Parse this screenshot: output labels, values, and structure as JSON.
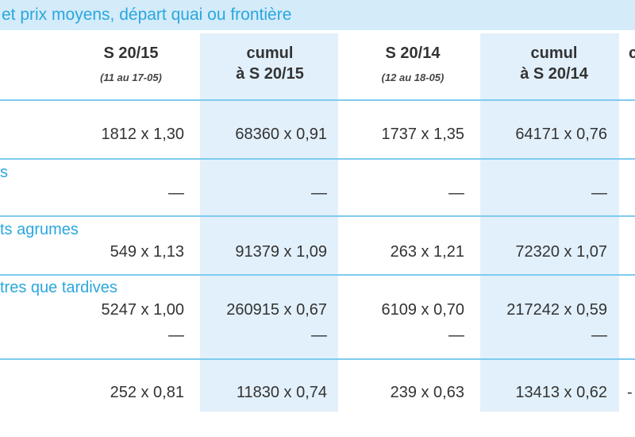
{
  "header": {
    "title": "et prix moyens, départ quai ou frontière"
  },
  "table": {
    "columns": [
      {
        "title": "S 20/15",
        "subtitle": "(11 au 17-05)"
      },
      {
        "title": "cumul\nà S 20/15"
      },
      {
        "title": "S 20/14",
        "subtitle": "(12 au 18-05)"
      },
      {
        "title": "cumul\nà S 20/14"
      },
      {
        "title": "c"
      }
    ],
    "rows": [
      {
        "lines": [
          [
            "1812 x 1,30",
            "68360 x 0,91",
            "1737 x 1,35",
            "64171 x 0,76"
          ]
        ]
      },
      {
        "label": "s",
        "lines": [
          [
            "—",
            "—",
            "—",
            "—"
          ]
        ]
      },
      {
        "label": "ts agrumes",
        "lines": [
          [
            "549 x 1,13",
            "91379 x 1,09",
            "263 x 1,21",
            "72320 x 1,07"
          ]
        ]
      },
      {
        "label": "tres que tardives",
        "lines": [
          [
            "5247 x 1,00",
            "260915 x 0,67",
            "6109 x 0,70",
            "217242 x 0,59"
          ],
          [
            "—",
            "—",
            "—",
            "—"
          ]
        ]
      },
      {
        "lines": [
          [
            "252 x 0,81",
            "11830 x 0,74",
            "239 x 0,63",
            "13413 x 0,62",
            "-"
          ]
        ]
      }
    ]
  }
}
